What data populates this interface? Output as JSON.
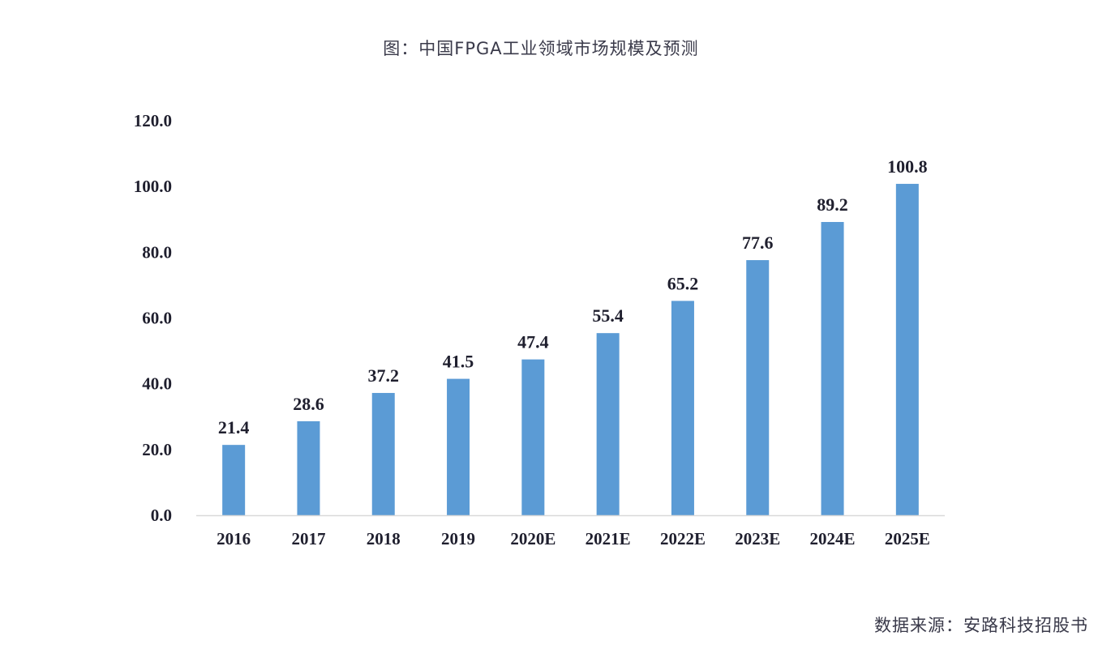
{
  "title": "图：中国FPGA工业领域市场规模及预测",
  "source": "数据来源：安路科技招股书",
  "chart_data": {
    "type": "bar",
    "title": "图：中国FPGA工业领域市场规模及预测",
    "xlabel": "",
    "ylabel": "",
    "categories": [
      "2016",
      "2017",
      "2018",
      "2019",
      "2020E",
      "2021E",
      "2022E",
      "2023E",
      "2024E",
      "2025E"
    ],
    "values": [
      21.4,
      28.6,
      37.2,
      41.5,
      47.4,
      55.4,
      65.2,
      77.6,
      89.2,
      100.8
    ],
    "value_labels": [
      "21.4",
      "28.6",
      "37.2",
      "41.5",
      "47.4",
      "55.4",
      "65.2",
      "77.6",
      "89.2",
      "100.8"
    ],
    "ylim": [
      0,
      120
    ],
    "yticks": [
      "0.0",
      "20.0",
      "40.0",
      "60.0",
      "80.0",
      "100.0",
      "120.0"
    ],
    "ytick_values": [
      0,
      20,
      40,
      60,
      80,
      100,
      120
    ],
    "grid": false,
    "legend": "none",
    "bar_color": "#5b9bd5",
    "axis_color": "#d9d9d9"
  }
}
